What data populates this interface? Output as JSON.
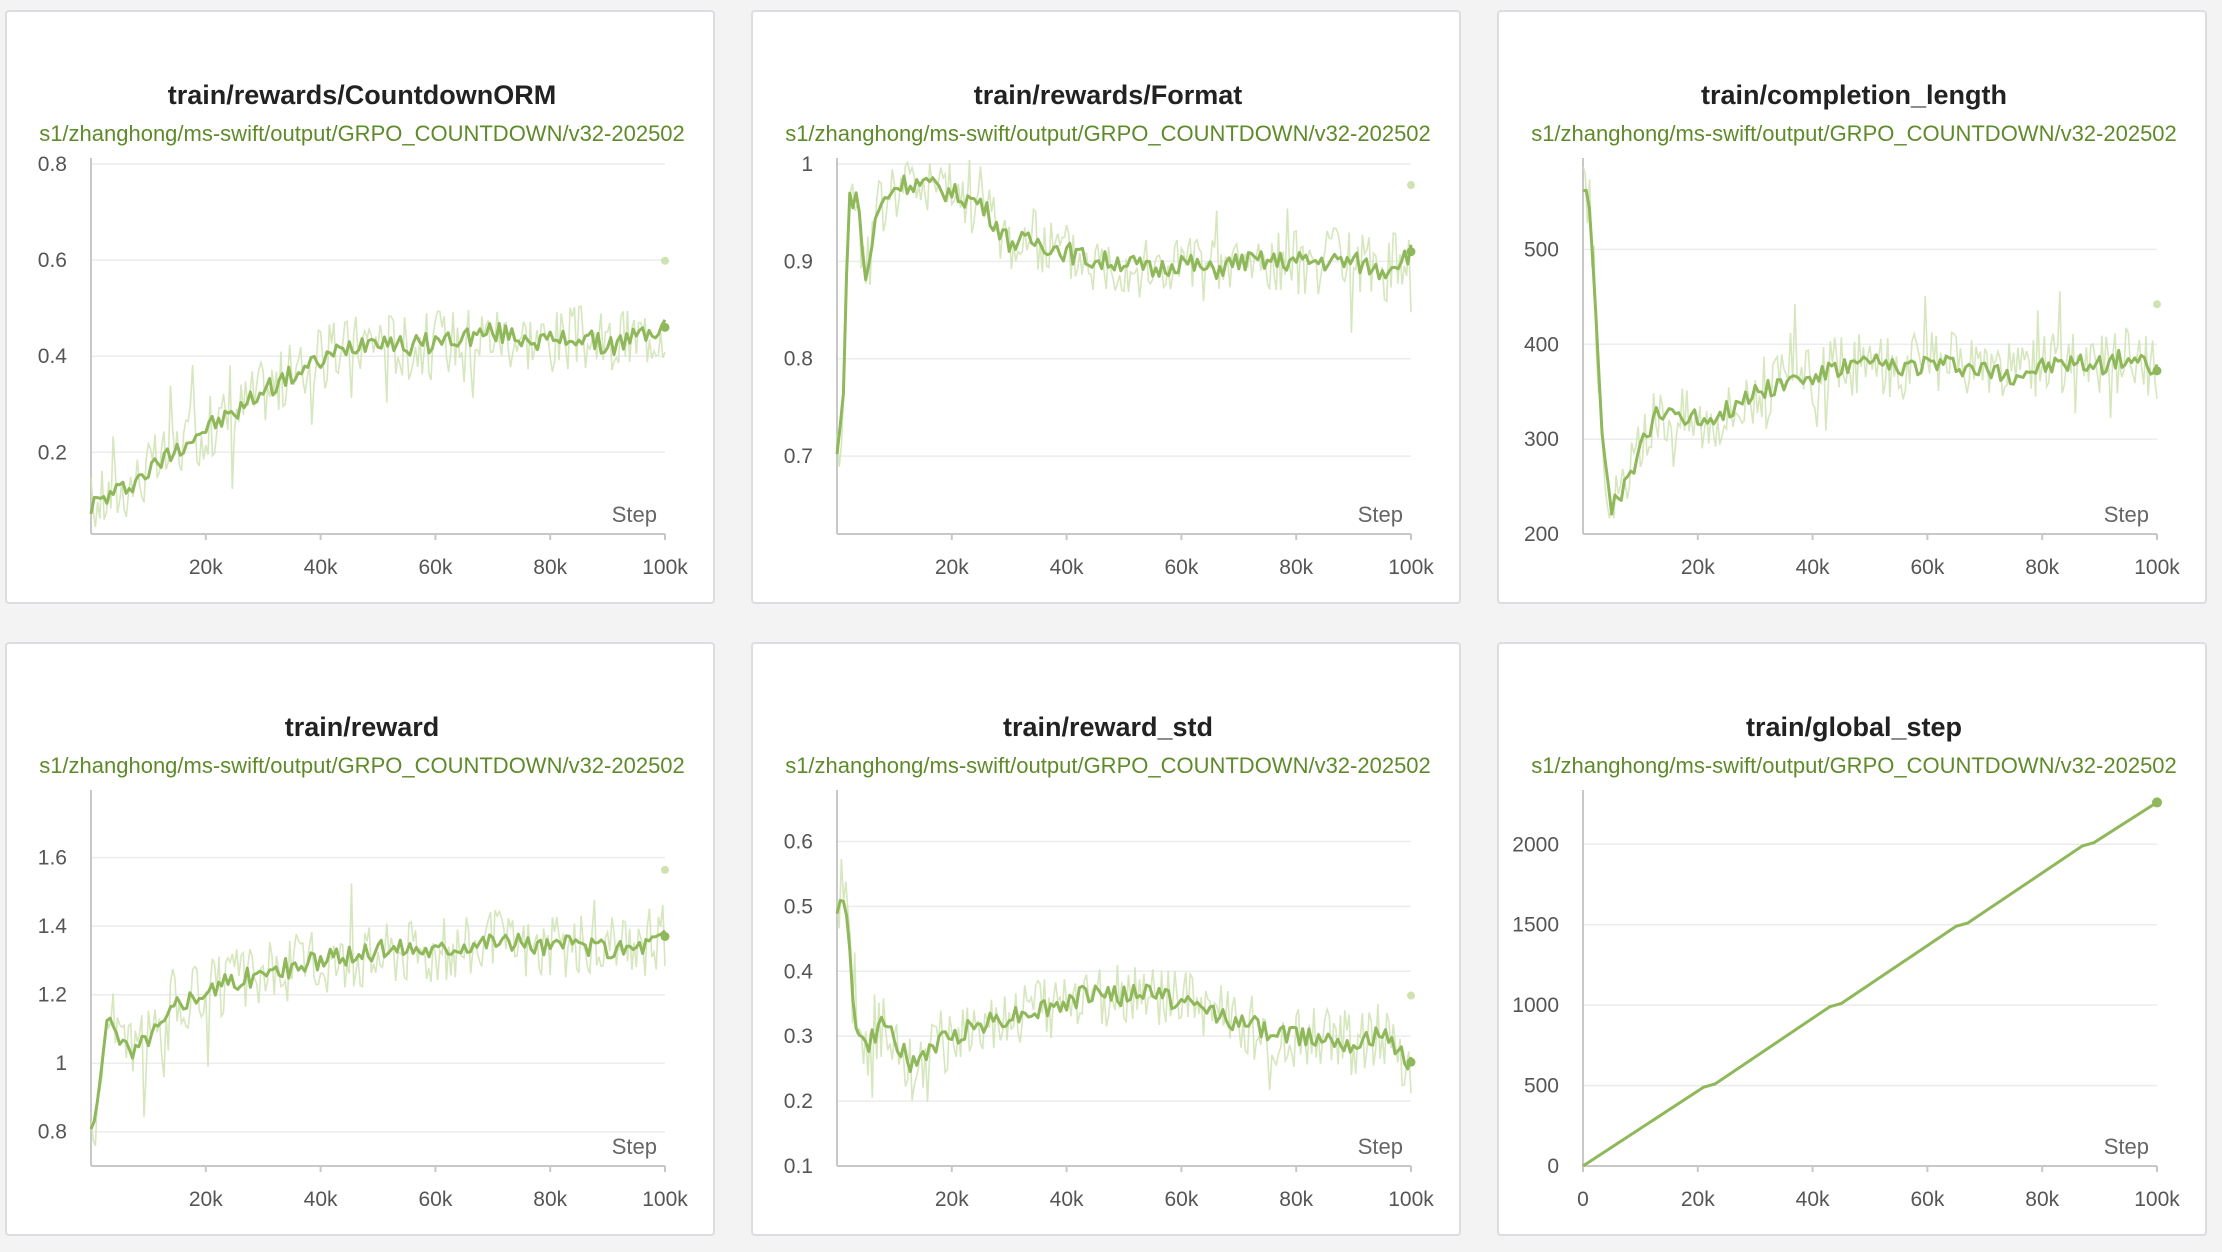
{
  "run_name": "s1/zhanghong/ms-swift/output/GRPO_COUNTDOWN/v32-202502",
  "x_axis_label": "Step",
  "colors": {
    "series_line": "#8fb85a",
    "series_raw": "#cfe2b2",
    "grid": "#ececec",
    "axis": "#c8c8c8"
  },
  "chart_data": [
    {
      "type": "line",
      "title": "train/rewards/CountdownORM",
      "xlabel": "Step",
      "ylabel": "",
      "xlim": [
        0,
        100000
      ],
      "ylim": [
        0.03,
        0.8
      ],
      "xticks": [
        20000,
        40000,
        60000,
        80000,
        100000
      ],
      "xtick_labels": [
        "20k",
        "40k",
        "60k",
        "80k",
        "100k"
      ],
      "yticks": [
        0.2,
        0.4,
        0.6,
        0.8
      ],
      "ytick_labels": [
        "0.2",
        "0.4",
        "0.6",
        "0.8"
      ],
      "series": [
        {
          "values": [
            {
              "x": 0,
              "y": 0.09
            },
            {
              "x": 5000,
              "y": 0.12
            },
            {
              "x": 10000,
              "y": 0.16
            },
            {
              "x": 15000,
              "y": 0.21
            },
            {
              "x": 20000,
              "y": 0.25
            },
            {
              "x": 25000,
              "y": 0.28
            },
            {
              "x": 30000,
              "y": 0.33
            },
            {
              "x": 35000,
              "y": 0.36
            },
            {
              "x": 40000,
              "y": 0.39
            },
            {
              "x": 45000,
              "y": 0.42
            },
            {
              "x": 50000,
              "y": 0.44
            },
            {
              "x": 55000,
              "y": 0.42
            },
            {
              "x": 60000,
              "y": 0.43
            },
            {
              "x": 65000,
              "y": 0.44
            },
            {
              "x": 70000,
              "y": 0.45
            },
            {
              "x": 75000,
              "y": 0.44
            },
            {
              "x": 80000,
              "y": 0.43
            },
            {
              "x": 85000,
              "y": 0.44
            },
            {
              "x": 90000,
              "y": 0.42
            },
            {
              "x": 95000,
              "y": 0.44
            },
            {
              "x": 100000,
              "y": 0.46
            }
          ]
        }
      ]
    },
    {
      "type": "line",
      "title": "train/rewards/Format",
      "xlabel": "Step",
      "ylabel": "",
      "xlim": [
        0,
        100000
      ],
      "ylim": [
        0.62,
        1.0
      ],
      "xticks": [
        20000,
        40000,
        60000,
        80000,
        100000
      ],
      "xtick_labels": [
        "20k",
        "40k",
        "60k",
        "80k",
        "100k"
      ],
      "yticks": [
        0.7,
        0.8,
        0.9,
        1.0
      ],
      "ytick_labels": [
        "0.7",
        "0.8",
        "0.9",
        "1"
      ],
      "series": [
        {
          "values": [
            {
              "x": 0,
              "y": 0.7
            },
            {
              "x": 1000,
              "y": 0.75
            },
            {
              "x": 2000,
              "y": 0.96
            },
            {
              "x": 3500,
              "y": 0.97
            },
            {
              "x": 5000,
              "y": 0.88
            },
            {
              "x": 7000,
              "y": 0.95
            },
            {
              "x": 9000,
              "y": 0.97
            },
            {
              "x": 11000,
              "y": 0.98
            },
            {
              "x": 15000,
              "y": 0.98
            },
            {
              "x": 20000,
              "y": 0.97
            },
            {
              "x": 25000,
              "y": 0.96
            },
            {
              "x": 30000,
              "y": 0.92
            },
            {
              "x": 35000,
              "y": 0.92
            },
            {
              "x": 40000,
              "y": 0.91
            },
            {
              "x": 45000,
              "y": 0.9
            },
            {
              "x": 50000,
              "y": 0.9
            },
            {
              "x": 55000,
              "y": 0.89
            },
            {
              "x": 60000,
              "y": 0.9
            },
            {
              "x": 65000,
              "y": 0.89
            },
            {
              "x": 70000,
              "y": 0.9
            },
            {
              "x": 75000,
              "y": 0.9
            },
            {
              "x": 80000,
              "y": 0.9
            },
            {
              "x": 85000,
              "y": 0.9
            },
            {
              "x": 90000,
              "y": 0.9
            },
            {
              "x": 95000,
              "y": 0.89
            },
            {
              "x": 100000,
              "y": 0.91
            }
          ]
        }
      ]
    },
    {
      "type": "line",
      "title": "train/completion_length",
      "xlabel": "Step",
      "ylabel": "",
      "xlim": [
        0,
        100000
      ],
      "ylim": [
        200,
        590
      ],
      "xticks": [
        20000,
        40000,
        60000,
        80000,
        100000
      ],
      "xtick_labels": [
        "20k",
        "40k",
        "60k",
        "80k",
        "100k"
      ],
      "yticks": [
        200,
        300,
        400,
        500
      ],
      "ytick_labels": [
        "200",
        "300",
        "400",
        "500"
      ],
      "series": [
        {
          "values": [
            {
              "x": 0,
              "y": 570
            },
            {
              "x": 1000,
              "y": 555
            },
            {
              "x": 2000,
              "y": 470
            },
            {
              "x": 3000,
              "y": 330
            },
            {
              "x": 4000,
              "y": 260
            },
            {
              "x": 5000,
              "y": 225
            },
            {
              "x": 7000,
              "y": 245
            },
            {
              "x": 10000,
              "y": 290
            },
            {
              "x": 13000,
              "y": 325
            },
            {
              "x": 16000,
              "y": 330
            },
            {
              "x": 20000,
              "y": 320
            },
            {
              "x": 25000,
              "y": 330
            },
            {
              "x": 30000,
              "y": 350
            },
            {
              "x": 35000,
              "y": 360
            },
            {
              "x": 40000,
              "y": 365
            },
            {
              "x": 45000,
              "y": 375
            },
            {
              "x": 50000,
              "y": 380
            },
            {
              "x": 55000,
              "y": 375
            },
            {
              "x": 60000,
              "y": 380
            },
            {
              "x": 65000,
              "y": 378
            },
            {
              "x": 70000,
              "y": 372
            },
            {
              "x": 75000,
              "y": 368
            },
            {
              "x": 80000,
              "y": 375
            },
            {
              "x": 85000,
              "y": 380
            },
            {
              "x": 90000,
              "y": 378
            },
            {
              "x": 95000,
              "y": 385
            },
            {
              "x": 100000,
              "y": 372
            }
          ]
        }
      ]
    },
    {
      "type": "line",
      "title": "train/reward",
      "xlabel": "Step",
      "ylabel": "",
      "xlim": [
        0,
        100000
      ],
      "ylim": [
        0.7,
        1.78
      ],
      "xticks": [
        20000,
        40000,
        60000,
        80000,
        100000
      ],
      "xtick_labels": [
        "20k",
        "40k",
        "60k",
        "80k",
        "100k"
      ],
      "yticks": [
        0.8,
        1.0,
        1.2,
        1.4,
        1.6
      ],
      "ytick_labels": [
        "0.8",
        "1",
        "1.2",
        "1.4",
        "1.6"
      ],
      "series": [
        {
          "values": [
            {
              "x": 0,
              "y": 0.8
            },
            {
              "x": 1500,
              "y": 0.9
            },
            {
              "x": 2500,
              "y": 1.1
            },
            {
              "x": 3500,
              "y": 1.15
            },
            {
              "x": 5000,
              "y": 1.08
            },
            {
              "x": 7000,
              "y": 1.02
            },
            {
              "x": 10000,
              "y": 1.08
            },
            {
              "x": 13000,
              "y": 1.12
            },
            {
              "x": 15000,
              "y": 1.18
            },
            {
              "x": 20000,
              "y": 1.21
            },
            {
              "x": 25000,
              "y": 1.24
            },
            {
              "x": 30000,
              "y": 1.26
            },
            {
              "x": 35000,
              "y": 1.28
            },
            {
              "x": 40000,
              "y": 1.3
            },
            {
              "x": 45000,
              "y": 1.31
            },
            {
              "x": 50000,
              "y": 1.33
            },
            {
              "x": 55000,
              "y": 1.34
            },
            {
              "x": 60000,
              "y": 1.33
            },
            {
              "x": 65000,
              "y": 1.35
            },
            {
              "x": 70000,
              "y": 1.36
            },
            {
              "x": 75000,
              "y": 1.35
            },
            {
              "x": 80000,
              "y": 1.34
            },
            {
              "x": 85000,
              "y": 1.35
            },
            {
              "x": 90000,
              "y": 1.33
            },
            {
              "x": 95000,
              "y": 1.34
            },
            {
              "x": 100000,
              "y": 1.37
            }
          ]
        }
      ]
    },
    {
      "type": "line",
      "title": "train/reward_std",
      "xlabel": "Step",
      "ylabel": "",
      "xlim": [
        0,
        100000
      ],
      "ylim": [
        0.1,
        0.67
      ],
      "xticks": [
        20000,
        40000,
        60000,
        80000,
        100000
      ],
      "xtick_labels": [
        "20k",
        "40k",
        "60k",
        "80k",
        "100k"
      ],
      "yticks": [
        0.1,
        0.2,
        0.3,
        0.4,
        0.5,
        0.6
      ],
      "ytick_labels": [
        "0.1",
        "0.2",
        "0.3",
        "0.4",
        "0.5",
        "0.6"
      ],
      "series": [
        {
          "values": [
            {
              "x": 0,
              "y": 0.5
            },
            {
              "x": 1000,
              "y": 0.53
            },
            {
              "x": 2000,
              "y": 0.45
            },
            {
              "x": 3000,
              "y": 0.33
            },
            {
              "x": 5000,
              "y": 0.28
            },
            {
              "x": 8000,
              "y": 0.32
            },
            {
              "x": 10000,
              "y": 0.3
            },
            {
              "x": 13000,
              "y": 0.25
            },
            {
              "x": 16000,
              "y": 0.28
            },
            {
              "x": 20000,
              "y": 0.3
            },
            {
              "x": 25000,
              "y": 0.32
            },
            {
              "x": 30000,
              "y": 0.33
            },
            {
              "x": 35000,
              "y": 0.34
            },
            {
              "x": 40000,
              "y": 0.35
            },
            {
              "x": 45000,
              "y": 0.37
            },
            {
              "x": 50000,
              "y": 0.36
            },
            {
              "x": 55000,
              "y": 0.37
            },
            {
              "x": 60000,
              "y": 0.35
            },
            {
              "x": 65000,
              "y": 0.34
            },
            {
              "x": 70000,
              "y": 0.32
            },
            {
              "x": 75000,
              "y": 0.31
            },
            {
              "x": 80000,
              "y": 0.3
            },
            {
              "x": 85000,
              "y": 0.3
            },
            {
              "x": 90000,
              "y": 0.29
            },
            {
              "x": 95000,
              "y": 0.3
            },
            {
              "x": 100000,
              "y": 0.26
            }
          ]
        }
      ]
    },
    {
      "type": "line",
      "title": "train/global_step",
      "xlabel": "Step",
      "ylabel": "",
      "xlim": [
        0,
        100000
      ],
      "ylim": [
        0,
        2300
      ],
      "xticks": [
        0,
        20000,
        40000,
        60000,
        80000,
        100000
      ],
      "xtick_labels": [
        "0",
        "20k",
        "40k",
        "60k",
        "80k",
        "100k"
      ],
      "yticks": [
        0,
        500,
        1000,
        1500,
        2000
      ],
      "ytick_labels": [
        "0",
        "500",
        "1000",
        "1500",
        "2000"
      ],
      "series": [
        {
          "values": [
            {
              "x": 0,
              "y": 0
            },
            {
              "x": 21000,
              "y": 490
            },
            {
              "x": 23000,
              "y": 510
            },
            {
              "x": 43000,
              "y": 990
            },
            {
              "x": 45000,
              "y": 1010
            },
            {
              "x": 65000,
              "y": 1490
            },
            {
              "x": 67000,
              "y": 1510
            },
            {
              "x": 87000,
              "y": 1990
            },
            {
              "x": 89000,
              "y": 2010
            },
            {
              "x": 100000,
              "y": 2260
            }
          ]
        }
      ]
    }
  ]
}
